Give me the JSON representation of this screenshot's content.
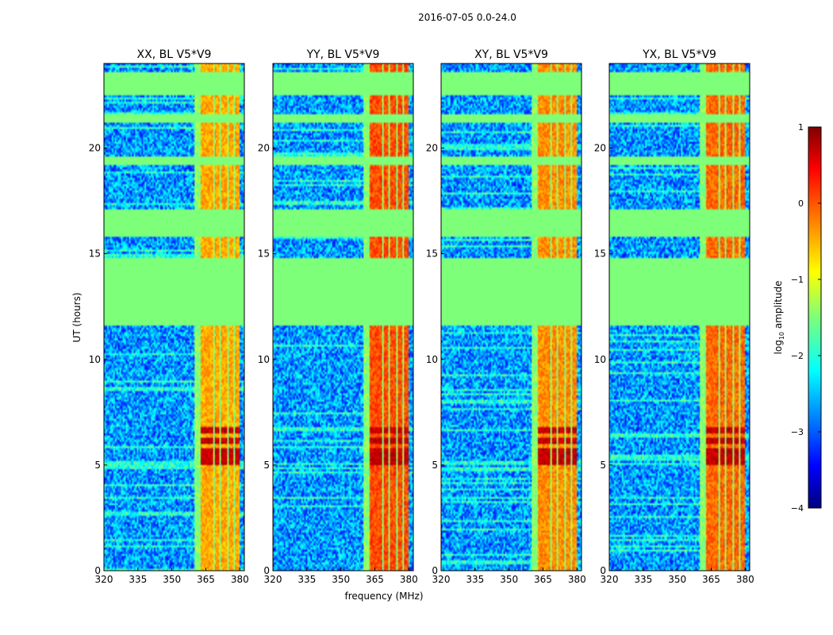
{
  "figure_title": "2016-07-05 0.0-24.0",
  "chart_data": {
    "type": "heatmap",
    "suptitle": "2016-07-05 0.0-24.0",
    "xlabel": "frequency (MHz)",
    "ylabel": "UT (hours)",
    "xlim": [
      320,
      382
    ],
    "ylim": [
      0,
      24
    ],
    "xticks": [
      320,
      335,
      350,
      365,
      380
    ],
    "yticks": [
      0,
      5,
      10,
      15,
      20
    ],
    "panels": [
      {
        "title": "XX, BL V5*V9",
        "rfi_level": 0.75
      },
      {
        "title": "YY, BL V5*V9",
        "rfi_level": 0.85
      },
      {
        "title": "XY, BL V5*V9",
        "rfi_level": 0.78
      },
      {
        "title": "YX, BL V5*V9",
        "rfi_level": 0.82
      }
    ],
    "flagged_hours": [
      [
        11.6,
        14.8
      ],
      [
        15.8,
        17.1
      ],
      [
        19.2,
        19.6
      ],
      [
        21.2,
        21.6
      ],
      [
        22.5,
        23.6
      ]
    ],
    "rfi_band_mhz": [
      360,
      380
    ],
    "rfi_channels_mhz": [
      364,
      367,
      370,
      373,
      376,
      379
    ],
    "strong_rfi_hours": [
      [
        5.0,
        5.8
      ],
      [
        6.0,
        6.3
      ],
      [
        6.5,
        6.8
      ]
    ],
    "colorbar": {
      "label": "log",
      "label_sub": "10",
      "label_suffix": " amplitude",
      "vmin": -4,
      "vmax": 1,
      "ticks": [
        "1",
        "0",
        "−1",
        "−2",
        "−3",
        "−4"
      ],
      "colormap": "jet"
    }
  }
}
